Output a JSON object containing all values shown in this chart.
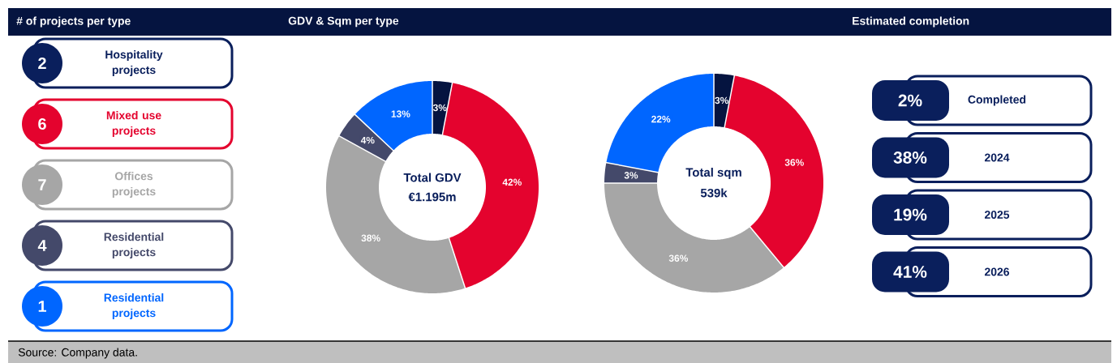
{
  "chart_data": [
    {
      "type": "other",
      "title": "# of projects per type",
      "categories": [
        "Hospitality projects",
        "Mixed use projects",
        "Offices projects",
        "Residential projects",
        "Residential projects"
      ],
      "values": [
        2,
        6,
        7,
        4,
        1
      ],
      "value_labels": [
        "2",
        "6",
        "7",
        "4",
        "1"
      ],
      "colors": [
        "#0a1f5c",
        "#e4032e",
        "#a6a6a6",
        "#44496a",
        "#0066ff"
      ],
      "annotations": [
        "Source: Company data."
      ]
    },
    {
      "type": "donut",
      "title": "GDV & Sqm per type",
      "categories": [
        null,
        null,
        null,
        null,
        null
      ],
      "values": [
        3,
        42,
        38,
        4,
        13
      ],
      "value_labels": [
        "3%",
        "42%",
        "38%",
        "4%",
        "13%"
      ],
      "colors": [
        "#051440",
        "#e4032e",
        "#a6a6a6",
        "#44496a",
        "#0066ff"
      ],
      "annotations": [
        "Total GDV",
        "€1.195m"
      ]
    },
    {
      "type": "donut",
      "categories": [
        null,
        null,
        null,
        null,
        null
      ],
      "values": [
        3,
        36,
        36,
        3,
        22
      ],
      "value_labels": [
        "3%",
        "36%",
        "36%",
        "3%",
        "22%"
      ],
      "colors": [
        "#051440",
        "#e4032e",
        "#a6a6a6",
        "#44496a",
        "#0066ff"
      ],
      "annotations": [
        "Total sqm",
        "539k"
      ]
    },
    {
      "type": "other",
      "title": "Estimated completion",
      "categories": [
        "Completed",
        "2024",
        "2025",
        "2026"
      ],
      "values": [
        2,
        38,
        19,
        41
      ],
      "value_labels": [
        "2%",
        "38%",
        "19%",
        "41%"
      ],
      "colors": [
        "#0a1f5c",
        "#0a1f5c",
        "#0a1f5c",
        "#0a1f5c"
      ]
    }
  ]
}
